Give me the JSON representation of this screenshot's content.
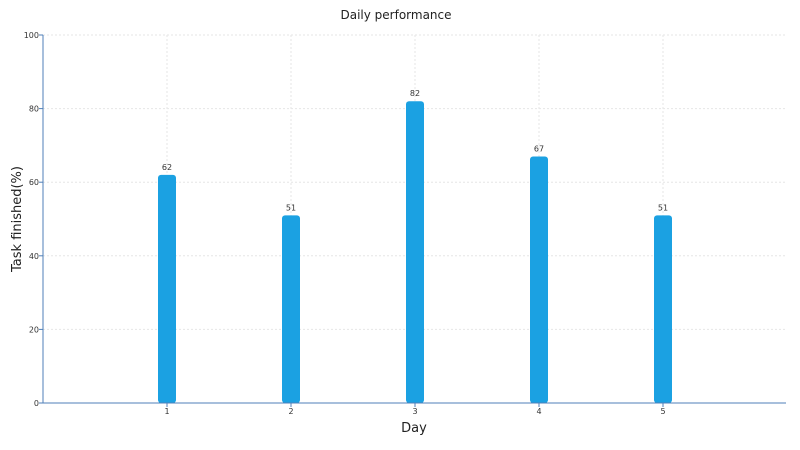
{
  "chart_data": {
    "type": "bar",
    "title": "Daily performance",
    "xlabel": "Day",
    "ylabel": "Task finished(%)",
    "categories": [
      "1",
      "2",
      "3",
      "4",
      "5"
    ],
    "values": [
      62,
      51,
      82,
      67,
      51
    ],
    "ylim": [
      0,
      100
    ],
    "yticks": [
      0,
      20,
      40,
      60,
      80,
      100
    ],
    "grid": true,
    "legend": "none",
    "bar_color": "#1ba1e2"
  }
}
